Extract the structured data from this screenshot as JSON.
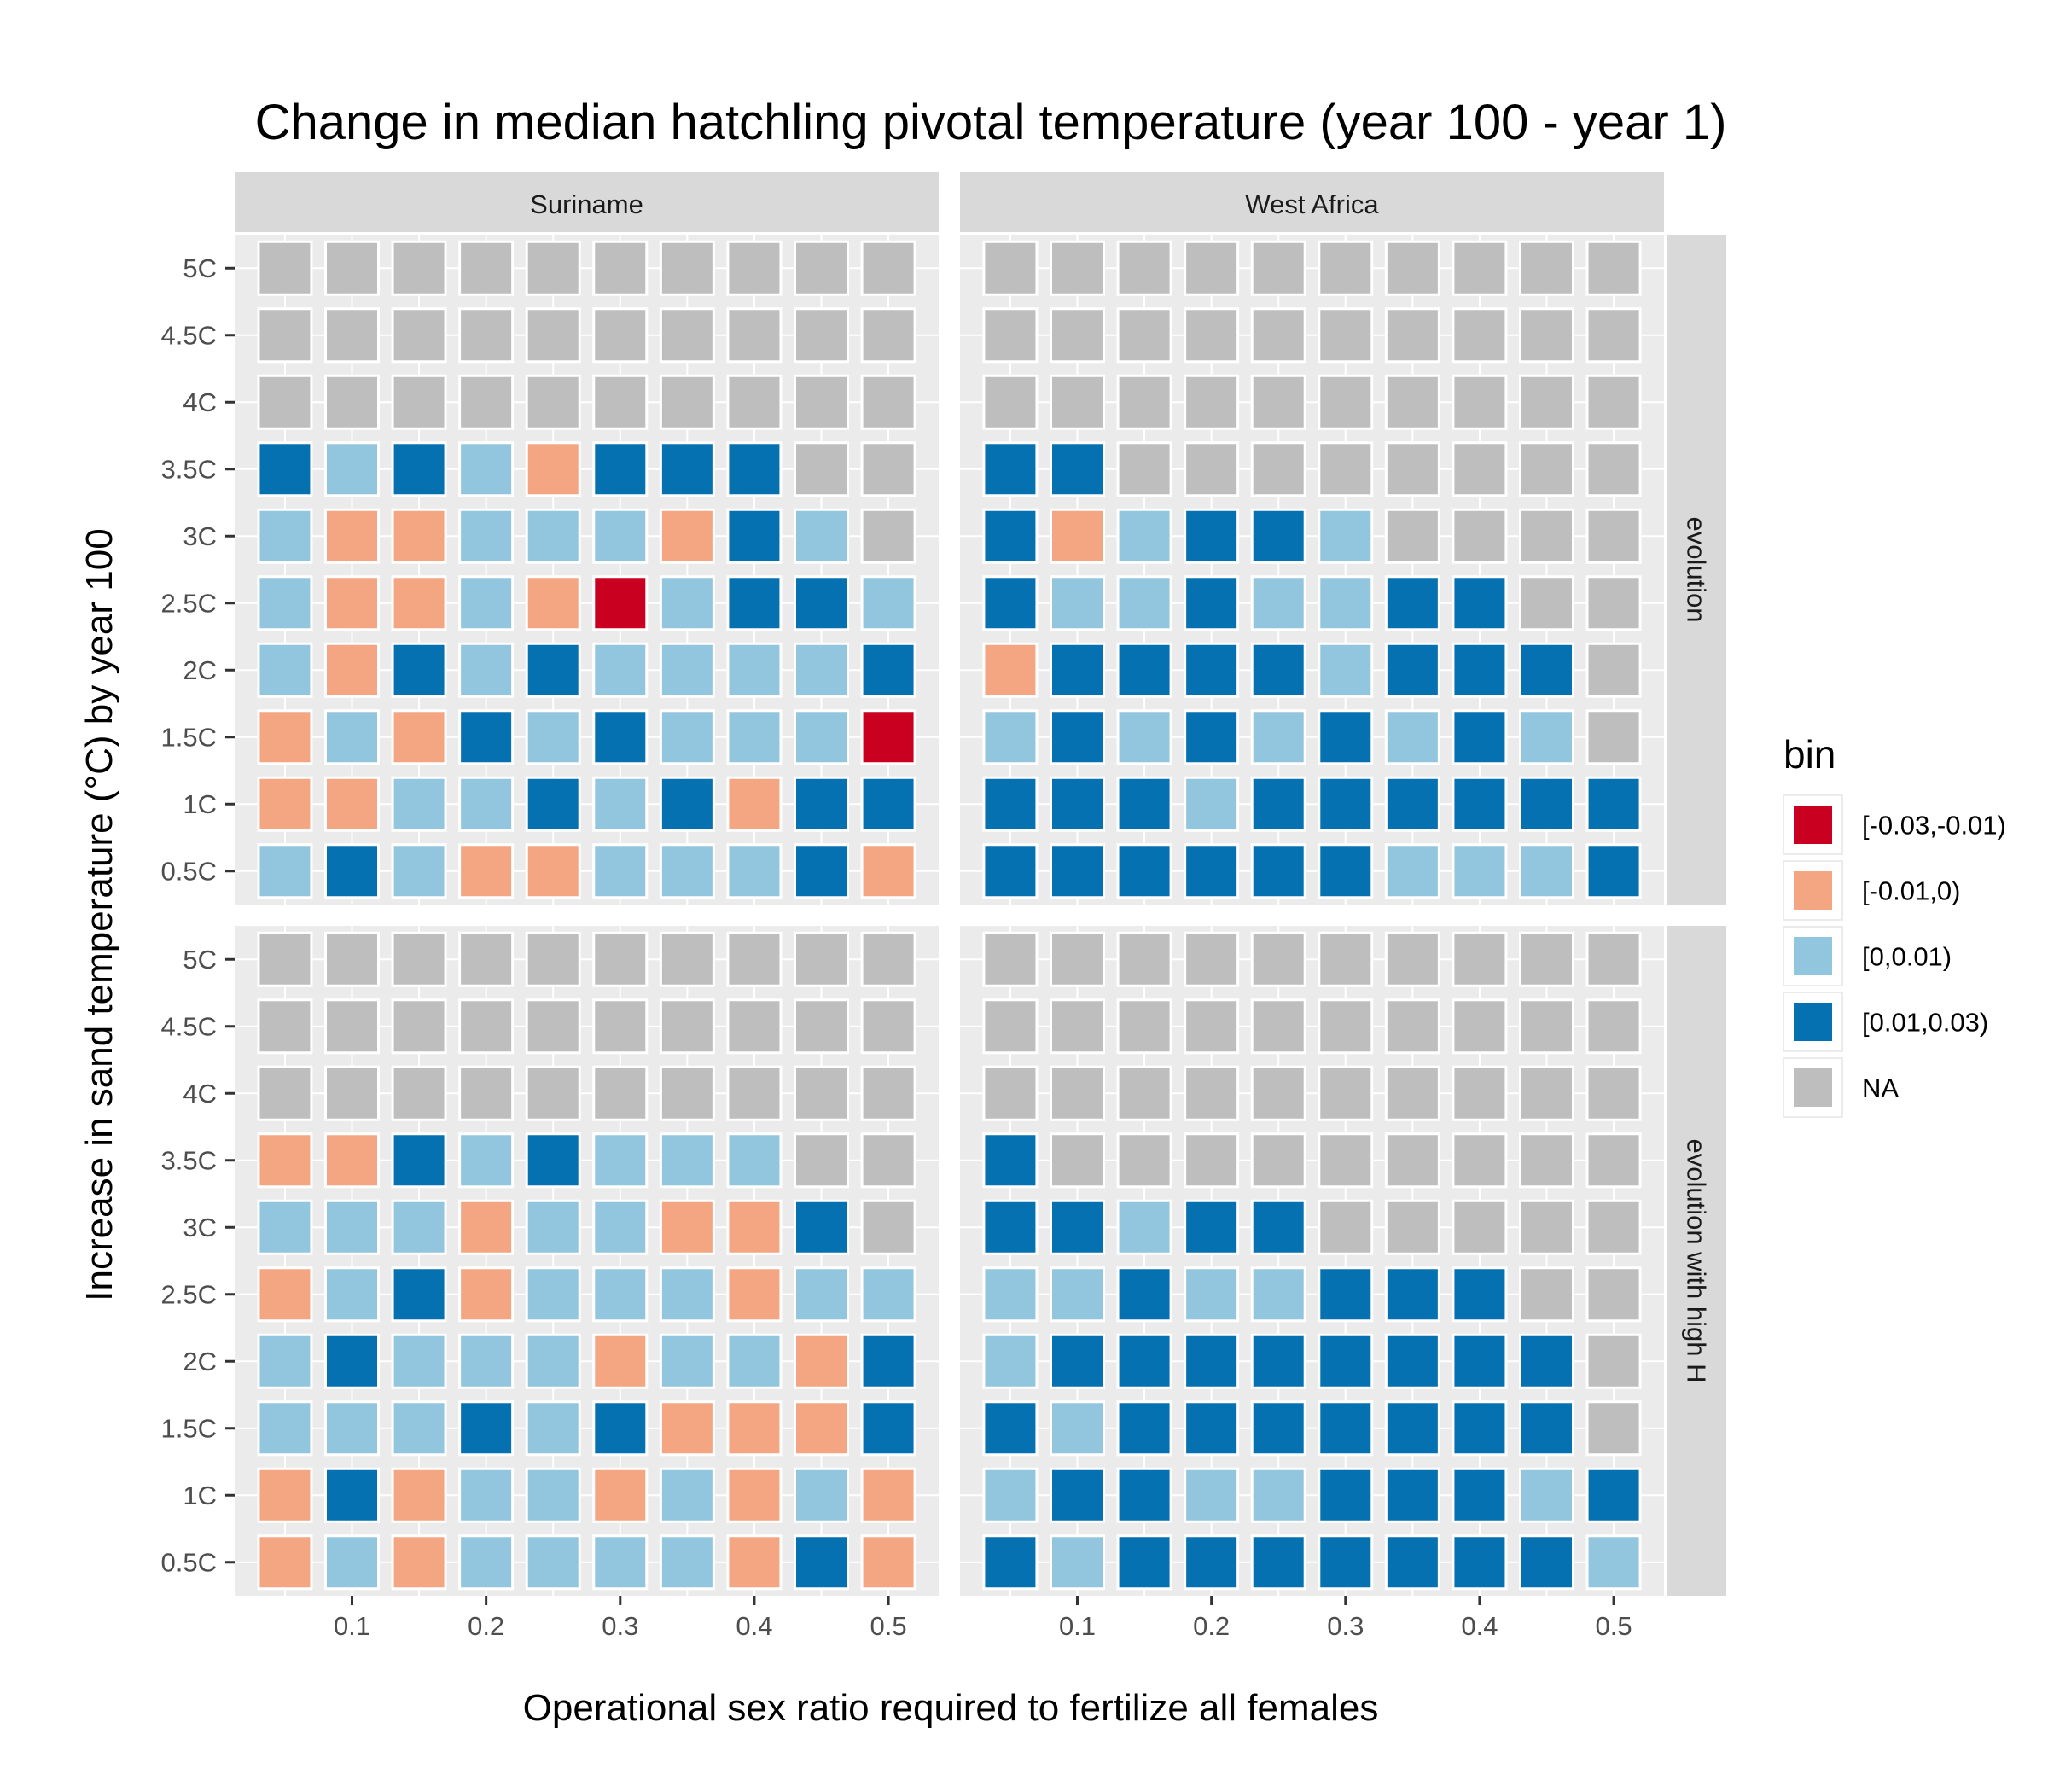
{
  "chart_data": {
    "type": "heatmap",
    "title": "Change in median hatchling pivotal temperature (year 100 - year 1)",
    "xlabel": "Operational sex ratio required to fertilize all females",
    "ylabel": "Increase in sand temperature (°C) by year 100",
    "x": [
      0.05,
      0.1,
      0.15,
      0.2,
      0.25,
      0.3,
      0.35,
      0.4,
      0.45,
      0.5
    ],
    "x_ticks": [
      {
        "value": 0.1,
        "label": "0.1"
      },
      {
        "value": 0.2,
        "label": "0.2"
      },
      {
        "value": 0.3,
        "label": "0.3"
      },
      {
        "value": 0.4,
        "label": "0.4"
      },
      {
        "value": 0.5,
        "label": "0.5"
      }
    ],
    "y": [
      "0.5C",
      "1C",
      "1.5C",
      "2C",
      "2.5C",
      "3C",
      "3.5C",
      "4C",
      "4.5C",
      "5C"
    ],
    "col_facets": [
      "Suriname",
      "West Africa"
    ],
    "row_facets": [
      "evolution",
      "evolution with high H"
    ],
    "legend": {
      "title": "bin",
      "placement": "right",
      "entries": [
        {
          "key": "A",
          "label": "[-0.03,-0.01)",
          "color": "#ca0020"
        },
        {
          "key": "B",
          "label": "[-0.01,0)",
          "color": "#f4a582"
        },
        {
          "key": "C",
          "label": "[0,0.01)",
          "color": "#92c5de"
        },
        {
          "key": "D",
          "label": "[0.01,0.03)",
          "color": "#0571b0"
        },
        {
          "key": "N",
          "label": "NA",
          "color": "#bebebe"
        }
      ]
    },
    "panels": [
      {
        "col": "Suriname",
        "row": "evolution",
        "cells": [
          "NNNNNNNNNN",
          "NNNNNNNNNN",
          "NNNNNNNNNN",
          "DCDCBDDDNN",
          "CBBCCCBDCN",
          "CBBCBACDDC",
          "CBDCDCCCCD",
          "BCBDCDCCCA",
          "BBCCDCDBDD",
          "CDCBBCCCDB"
        ]
      },
      {
        "col": "West Africa",
        "row": "evolution",
        "cells": [
          "NNNNNNNNNN",
          "NNNNNNNNNN",
          "NNNNNNNNNN",
          "DDNNNNNNNN",
          "DBCDDCNNNN",
          "DCCDCCDDNN",
          "BDDDDCDDDN",
          "CDCDCDCDCN",
          "DDDCDDDDDD",
          "DDDDDDCCCD"
        ]
      },
      {
        "col": "Suriname",
        "row": "evolution with high H",
        "cells": [
          "NNNNNNNNNN",
          "NNNNNNNNNN",
          "NNNNNNNNNN",
          "BBDCDCCCNN",
          "CCCBCCBBDN",
          "BCDBCCCBCC",
          "CDCCCBCCBD",
          "CCCDCDBBBD",
          "BDBCCBCBCB",
          "BCBCCCCBDB"
        ]
      },
      {
        "col": "West Africa",
        "row": "evolution with high H",
        "cells": [
          "NNNNNNNNNN",
          "NNNNNNNNNN",
          "NNNNNNNNNN",
          "DNNNNNNNNN",
          "DDCDDNNNNN",
          "CCDCCDDDNN",
          "CDDDDDDDDN",
          "DCDDDDDDDN",
          "CDDCCDDDCD",
          "DCDDDDDDDC"
        ]
      }
    ]
  }
}
